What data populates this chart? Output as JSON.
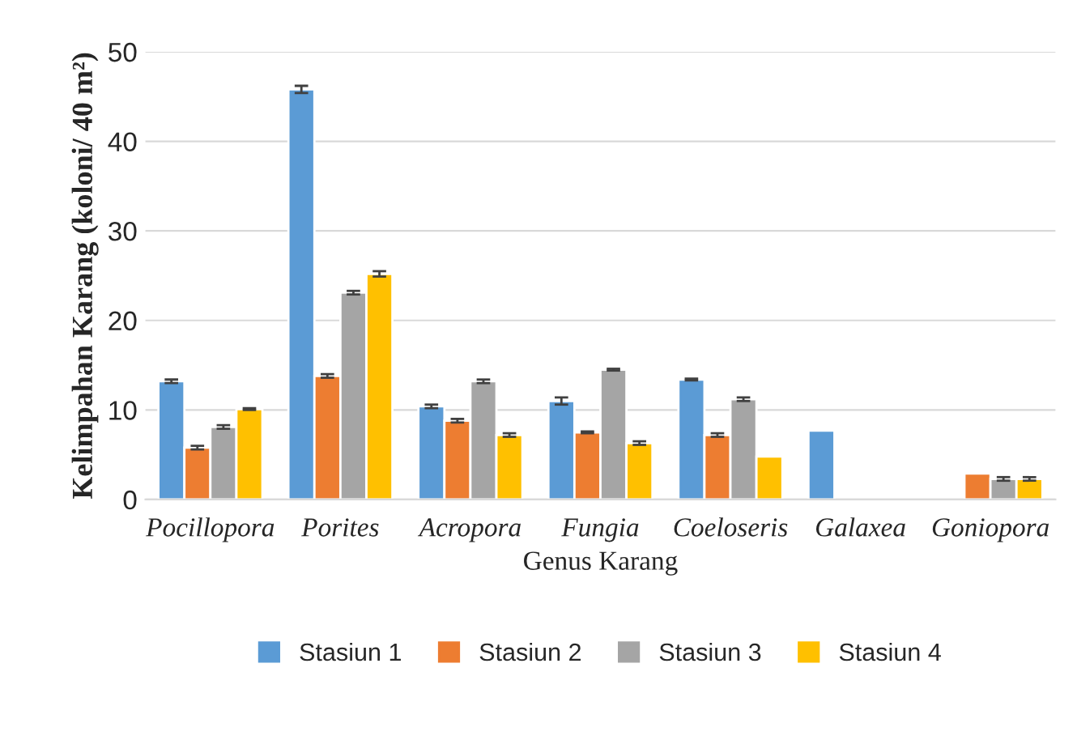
{
  "chart_data": {
    "type": "bar",
    "xlabel": "Genus Karang",
    "ylabel": "Kelimpahan Karang (koloni/ 40 m²)",
    "categories": [
      "Pocillopora",
      "Porites",
      "Acropora",
      "Fungia",
      "Coeloseris",
      "Galaxea",
      "Goniopora"
    ],
    "series": [
      {
        "name": "Stasiun 1",
        "color": "#5b9bd5",
        "values": [
          13.2,
          45.8,
          10.4,
          11.0,
          13.4,
          7.7,
          null
        ],
        "errors": [
          0.2,
          0.4,
          0.2,
          0.4,
          0.1,
          null,
          null
        ]
      },
      {
        "name": "Stasiun 2",
        "color": "#ed7d31",
        "values": [
          5.8,
          13.8,
          8.8,
          7.5,
          7.2,
          null,
          2.9
        ],
        "errors": [
          0.2,
          0.2,
          0.2,
          0.1,
          0.2,
          null,
          null
        ]
      },
      {
        "name": "Stasiun 3",
        "color": "#a5a5a5",
        "values": [
          8.1,
          23.1,
          13.2,
          14.5,
          11.2,
          null,
          2.3
        ],
        "errors": [
          0.2,
          0.2,
          0.2,
          0.1,
          0.2,
          null,
          0.2
        ]
      },
      {
        "name": "Stasiun 4",
        "color": "#ffc000",
        "values": [
          10.1,
          25.2,
          7.2,
          6.3,
          4.8,
          null,
          2.3
        ],
        "errors": [
          0.1,
          0.3,
          0.2,
          0.2,
          null,
          null,
          0.2
        ]
      }
    ],
    "ylim": [
      0,
      50
    ],
    "yticks": [
      0,
      10,
      20,
      30,
      40,
      50
    ],
    "grid": "y",
    "legend": "bottom"
  }
}
